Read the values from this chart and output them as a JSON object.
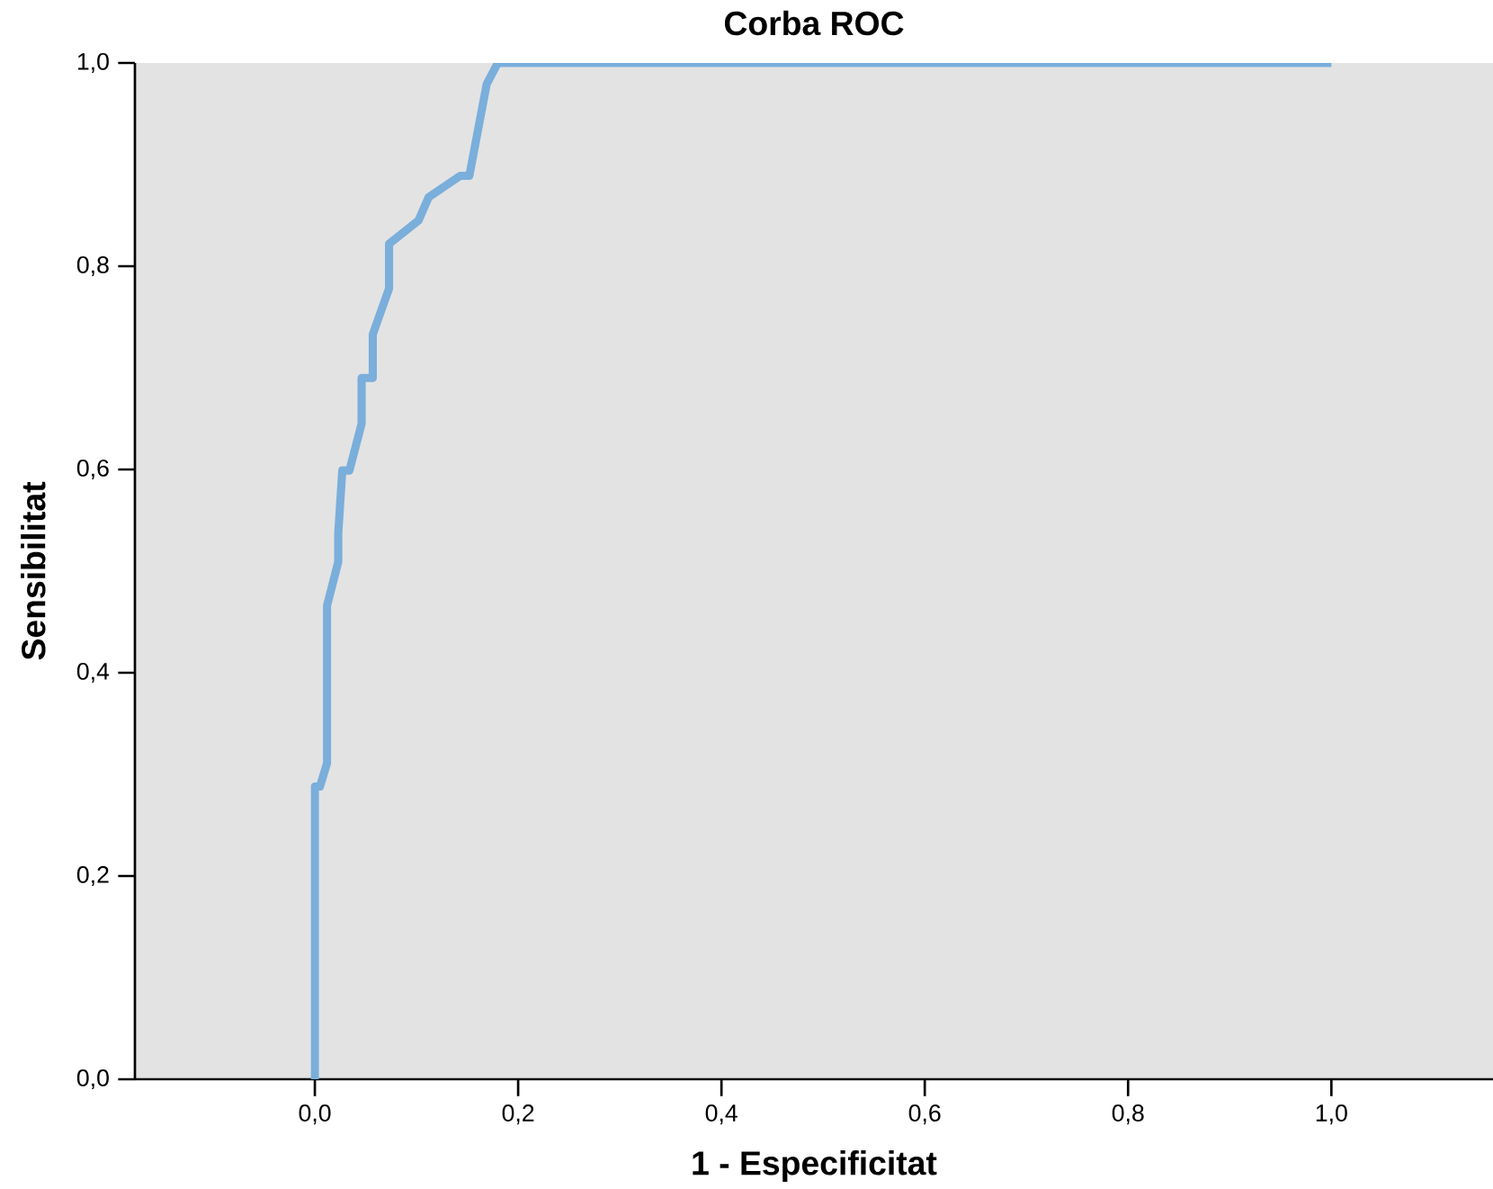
{
  "chart_data": {
    "type": "line",
    "title": "Corba ROC",
    "xlabel": "1 - Especificitat",
    "ylabel": "Sensibilitat",
    "xlim": [
      -0.177,
      1.159
    ],
    "ylim": [
      0,
      1
    ],
    "xticks": [
      {
        "value": 0,
        "label": "0,0"
      },
      {
        "value": 0.2,
        "label": "0,2"
      },
      {
        "value": 0.4,
        "label": "0,4"
      },
      {
        "value": 0.6,
        "label": "0,6"
      },
      {
        "value": 0.8,
        "label": "0,8"
      },
      {
        "value": 1,
        "label": "1,0"
      }
    ],
    "yticks": [
      {
        "value": 0,
        "label": "0,0"
      },
      {
        "value": 0.2,
        "label": "0,2"
      },
      {
        "value": 0.4,
        "label": "0,4"
      },
      {
        "value": 0.6,
        "label": "0,6"
      },
      {
        "value": 0.8,
        "label": "0,8"
      },
      {
        "value": 1,
        "label": "1,0"
      }
    ],
    "series": [
      {
        "color": "#7aaedb",
        "x": [
          0,
          0,
          0.005,
          0.012,
          0.012,
          0.023,
          0.023,
          0.027,
          0.034,
          0.046,
          0.046,
          0.057,
          0.057,
          0.073,
          0.073,
          0.102,
          0.112,
          0.143,
          0.152,
          0.169,
          0.18,
          1
        ],
        "values": [
          0,
          0.288,
          0.288,
          0.311,
          0.466,
          0.509,
          0.537,
          0.599,
          0.599,
          0.645,
          0.69,
          0.69,
          0.733,
          0.778,
          0.822,
          0.845,
          0.868,
          0.889,
          0.889,
          0.979,
          1,
          1
        ]
      }
    ]
  }
}
